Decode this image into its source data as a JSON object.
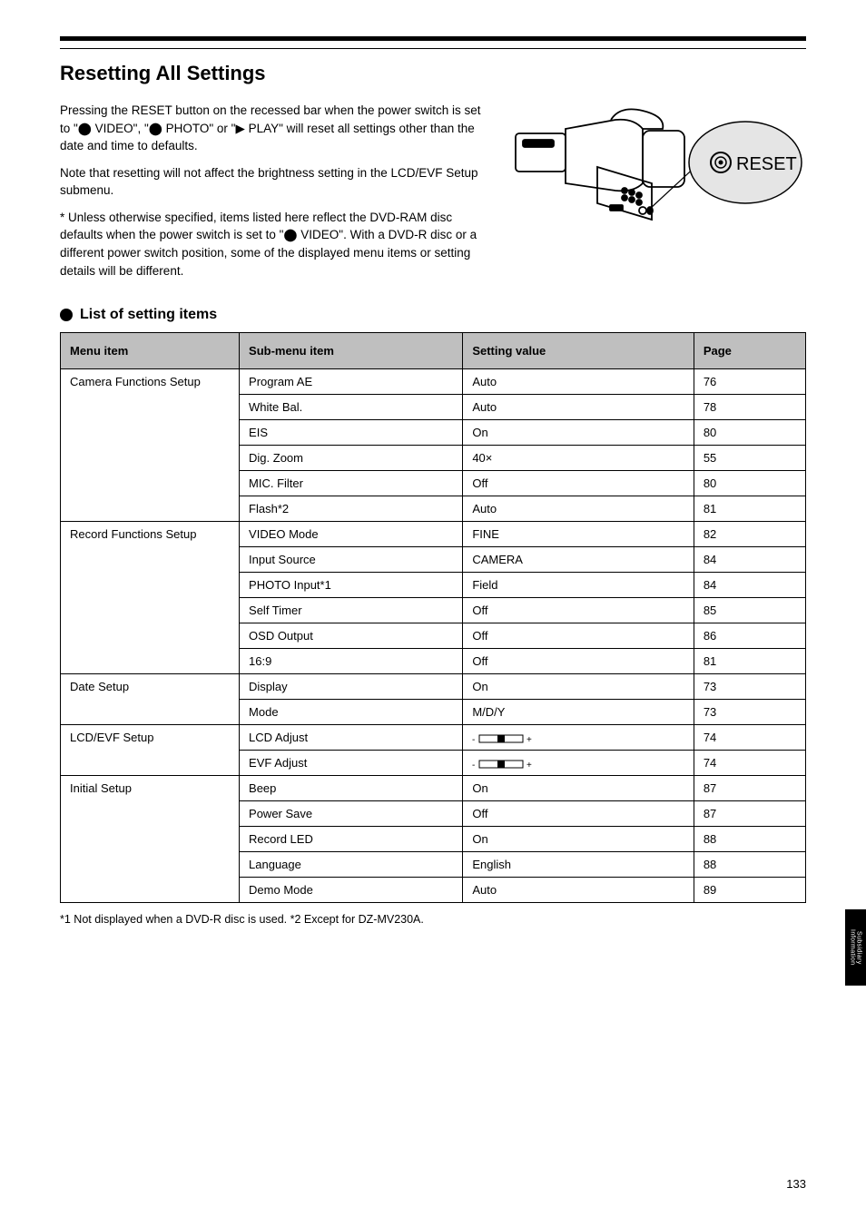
{
  "page": {
    "title": "Resetting All Settings",
    "intro_p1": "Pressing the RESET button on the recessed bar when the power switch is set to \"⬤ VIDEO\", \"⬤ PHOTO\" or \"▶ PLAY\" will reset all settings other than the date and time to defaults.",
    "intro_p2": "Note that resetting will not affect the brightness setting in the LCD/EVF Setup submenu.",
    "intro_p3": "* Unless otherwise specified, items listed here reflect the DVD-RAM disc defaults when the power switch is set to \"⬤ VIDEO\". With a DVD-R disc or a different power switch position, some of the displayed menu items or setting details will be different.",
    "section_heading": "List of setting items",
    "side_tab": "Subsidiary Information",
    "page_number": "133",
    "note": "*1 Not displayed when a DVD-R disc is used. *2 Except for DZ-MV230A.",
    "reset_label": "RESET",
    "table": {
      "headers": [
        "Menu item",
        "Sub-menu item",
        "Setting value",
        "Page"
      ],
      "groups": [
        {
          "menu": "Camera Functions Setup",
          "rows": [
            {
              "sub": "Program AE",
              "val": "Auto",
              "page": "76"
            },
            {
              "sub": "White Bal.",
              "val": "Auto",
              "page": "78"
            },
            {
              "sub": "EIS",
              "val": "On",
              "page": "80"
            },
            {
              "sub": "Dig. Zoom",
              "val": "40×",
              "page": "55"
            },
            {
              "sub": "MIC. Filter",
              "val": "Off",
              "page": "80"
            },
            {
              "sub": "Flash*2",
              "val": "Auto",
              "page": "81"
            }
          ]
        },
        {
          "menu": "Record Functions Setup",
          "rows": [
            {
              "sub": "VIDEO Mode",
              "val": "FINE",
              "page": "82"
            },
            {
              "sub": "Input Source",
              "val": "CAMERA",
              "page": "84"
            },
            {
              "sub": "PHOTO Input*1",
              "val": "Field",
              "page": "84"
            },
            {
              "sub": "Self Timer",
              "val": "Off",
              "page": "85"
            },
            {
              "sub": "OSD Output",
              "val": "Off",
              "page": "86"
            },
            {
              "sub": "16:9",
              "val": "Off",
              "page": "81"
            }
          ]
        },
        {
          "menu": "Date Setup",
          "rows": [
            {
              "sub": "Display",
              "val": "On",
              "page": "73"
            },
            {
              "sub": "Mode",
              "val": "M/D/Y",
              "page": "73"
            }
          ]
        },
        {
          "menu": "LCD/EVF Setup",
          "rows": [
            {
              "sub": "LCD Adjust",
              "val": "__SLIDER__",
              "page": "74"
            },
            {
              "sub": "EVF Adjust",
              "val": "__SLIDER__",
              "page": "74"
            }
          ]
        },
        {
          "menu": "Initial Setup",
          "rows": [
            {
              "sub": "Beep",
              "val": "On",
              "page": "87"
            },
            {
              "sub": "Power Save",
              "val": "Off",
              "page": "87"
            },
            {
              "sub": "Record LED",
              "val": "On",
              "page": "88"
            },
            {
              "sub": "Language",
              "val": "English",
              "page": "88"
            },
            {
              "sub": "Demo Mode",
              "val": "Auto",
              "page": "89"
            }
          ]
        }
      ]
    }
  }
}
